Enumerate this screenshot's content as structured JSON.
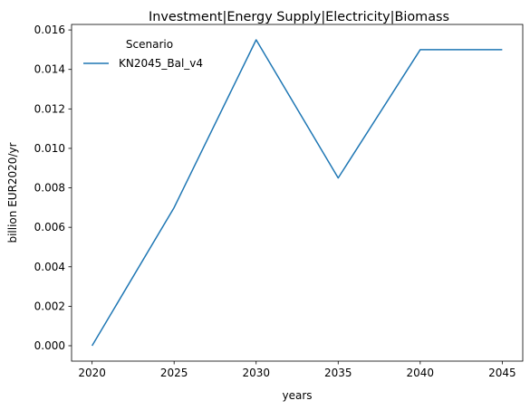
{
  "chart_data": {
    "type": "line",
    "title": "Investment|Energy Supply|Electricity|Biomass",
    "xlabel": "years",
    "ylabel": "billion EUR2020/yr",
    "x": [
      2020,
      2025,
      2030,
      2035,
      2040,
      2045
    ],
    "xticks": [
      "2020",
      "2025",
      "2030",
      "2035",
      "2040",
      "2045"
    ],
    "yticks": [
      "0.000",
      "0.002",
      "0.004",
      "0.006",
      "0.008",
      "0.010",
      "0.012",
      "0.014",
      "0.016"
    ],
    "xlim": [
      2018.75,
      2046.25
    ],
    "ylim": [
      -0.00078,
      0.01628
    ],
    "legend": {
      "title": "Scenario",
      "placement": "upper left"
    },
    "grid": false,
    "series": [
      {
        "name": "KN2045_Bal_v4",
        "color": "#1f77b4",
        "values": [
          0.0,
          0.007,
          0.0155,
          0.0085,
          0.015,
          0.015
        ]
      }
    ]
  }
}
